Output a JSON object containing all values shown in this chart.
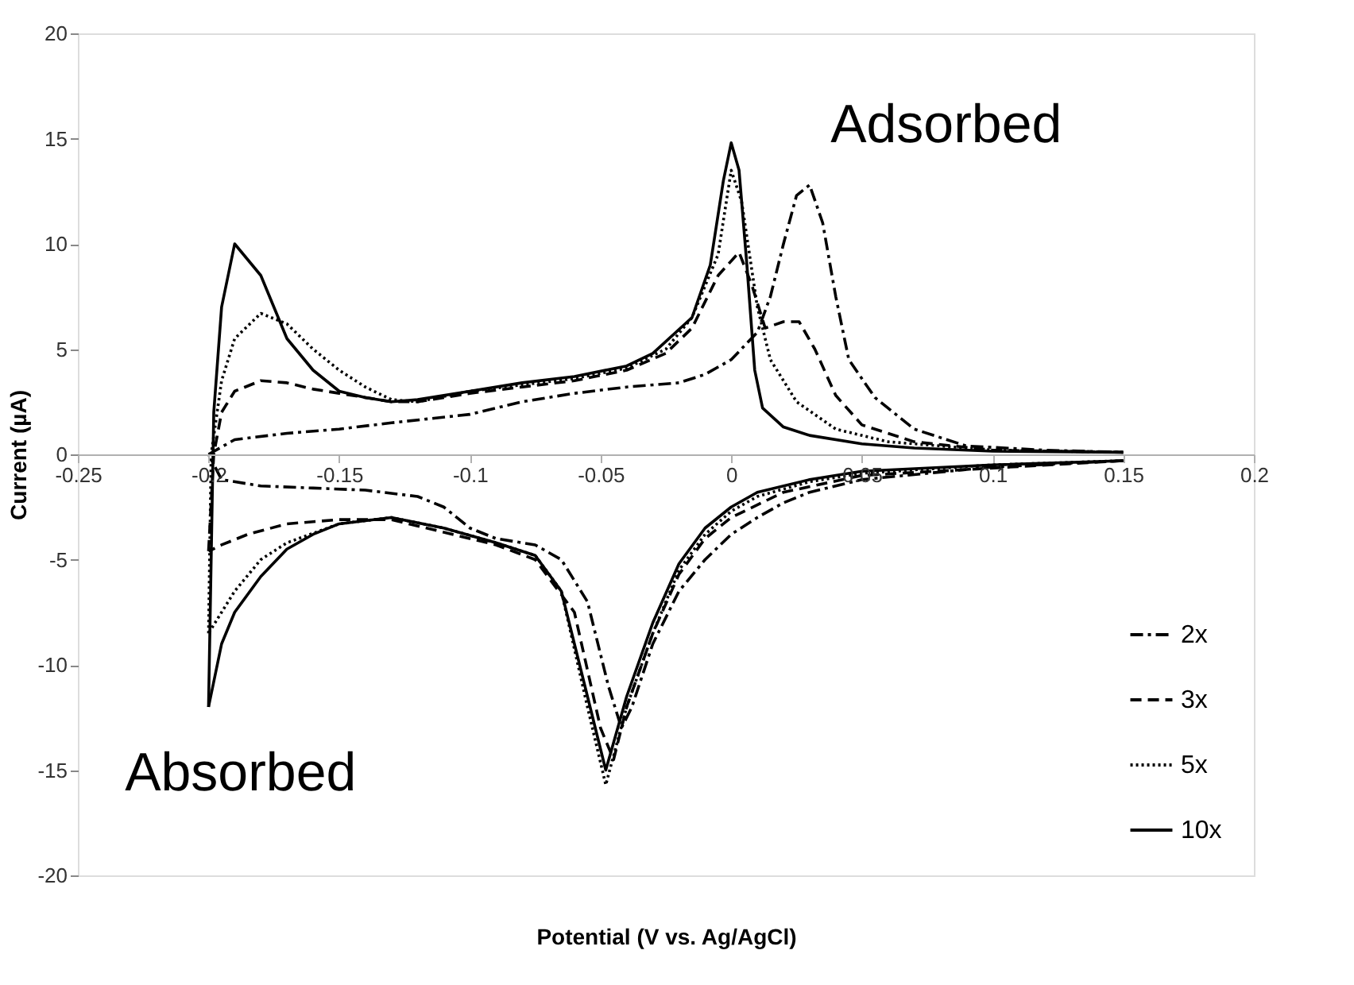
{
  "chart_data": {
    "type": "line",
    "xlabel": "Potential (V vs. Ag/AgCl)",
    "ylabel": "Current (µA)",
    "xlim": [
      -0.25,
      0.2
    ],
    "xticks": [
      -0.25,
      -0.2,
      -0.15,
      -0.1,
      -0.05,
      0,
      0.05,
      0.1,
      0.15,
      0.2
    ],
    "ylim": [
      -20,
      20
    ],
    "yticks": [
      -20,
      -15,
      -10,
      -5,
      0,
      5,
      10,
      15,
      20
    ],
    "grid": false,
    "legend": "bottom right",
    "marker": "none",
    "annotations": [
      "Adsorbed",
      "Absorbed"
    ],
    "series": [
      {
        "name": "2x",
        "color": "#000000",
        "line_style": "dashdot",
        "x": [
          -0.2,
          -0.19,
          -0.17,
          -0.15,
          -0.13,
          -0.1,
          -0.08,
          -0.06,
          -0.04,
          -0.02,
          -0.01,
          0,
          0.01,
          0.015,
          0.02,
          0.025,
          0.03,
          0.035,
          0.04,
          0.045,
          0.055,
          0.07,
          0.09,
          0.12,
          0.15
        ],
        "values": [
          0,
          0.7,
          1,
          1.2,
          1.5,
          1.9,
          2.5,
          2.9,
          3.2,
          3.4,
          3.8,
          4.5,
          5.8,
          7.5,
          10,
          12.3,
          12.8,
          11,
          7.5,
          4.5,
          2.7,
          1.2,
          0.4,
          0.2,
          0.1
        ]
      },
      {
        "color": "#000000",
        "line_style": "dashdot",
        "x": [
          0.15,
          0.1,
          0.05,
          0.03,
          0.02,
          0.01,
          0,
          -0.01,
          -0.02,
          -0.03,
          -0.038,
          -0.042,
          -0.047,
          -0.055,
          -0.065,
          -0.075,
          -0.09,
          -0.1,
          -0.11,
          -0.12,
          -0.14,
          -0.16,
          -0.18,
          -0.195,
          -0.2
        ],
        "values": [
          -0.3,
          -0.6,
          -1.2,
          -1.8,
          -2.3,
          -3,
          -3.8,
          -5,
          -6.5,
          -9,
          -12,
          -13,
          -11,
          -7,
          -5,
          -4.3,
          -4,
          -3.5,
          -2.5,
          -2,
          -1.7,
          -1.6,
          -1.5,
          -1.2,
          0
        ]
      },
      {
        "name": "3x",
        "color": "#000000",
        "line_style": "dashed",
        "x": [
          -0.2,
          -0.198,
          -0.195,
          -0.19,
          -0.18,
          -0.17,
          -0.16,
          -0.15,
          -0.13,
          -0.12,
          -0.1,
          -0.08,
          -0.06,
          -0.04,
          -0.025,
          -0.015,
          -0.005,
          0.003,
          0.008,
          0.013,
          0.02,
          0.026,
          0.032,
          0.04,
          0.05,
          0.07,
          0.1,
          0.15
        ],
        "values": [
          -4.6,
          0,
          2,
          3,
          3.5,
          3.4,
          3.1,
          2.9,
          2.5,
          2.5,
          2.9,
          3.2,
          3.5,
          4,
          4.8,
          6,
          8.5,
          9.6,
          8,
          6,
          6.3,
          6.3,
          5,
          2.8,
          1.4,
          0.6,
          0.2,
          0.1
        ]
      },
      {
        "color": "#000000",
        "line_style": "dashed",
        "x": [
          0.15,
          0.05,
          0.02,
          0,
          -0.01,
          -0.02,
          -0.03,
          -0.04,
          -0.045,
          -0.05,
          -0.06,
          -0.075,
          -0.09,
          -0.11,
          -0.13,
          -0.15,
          -0.17,
          -0.185,
          -0.195,
          -0.2
        ],
        "values": [
          -0.3,
          -1,
          -1.8,
          -3,
          -4,
          -5.7,
          -8.5,
          -12,
          -14.5,
          -13,
          -7.5,
          -5,
          -4.3,
          -3.7,
          -3.1,
          -3.1,
          -3.3,
          -3.8,
          -4.3,
          -4.6
        ]
      },
      {
        "name": "5x",
        "color": "#000000",
        "line_style": "dotted",
        "x": [
          -0.2,
          -0.199,
          -0.195,
          -0.19,
          -0.18,
          -0.17,
          -0.16,
          -0.15,
          -0.14,
          -0.13,
          -0.12,
          -0.1,
          -0.08,
          -0.06,
          -0.04,
          -0.025,
          -0.015,
          -0.005,
          0,
          0.004,
          0.01,
          0.015,
          0.025,
          0.04,
          0.06,
          0.1,
          0.15
        ],
        "values": [
          -8.5,
          0,
          3.5,
          5.5,
          6.7,
          6.2,
          5,
          4,
          3.2,
          2.6,
          2.5,
          3,
          3.3,
          3.6,
          4.1,
          5,
          6.5,
          9.5,
          13.5,
          12,
          7,
          4.5,
          2.5,
          1.2,
          0.6,
          0.2,
          0.1
        ]
      },
      {
        "color": "#000000",
        "line_style": "dotted",
        "x": [
          0.15,
          0.1,
          0.05,
          0.03,
          0.01,
          0,
          -0.01,
          -0.02,
          -0.03,
          -0.04,
          -0.048,
          -0.055,
          -0.065,
          -0.075,
          -0.09,
          -0.11,
          -0.13,
          -0.15,
          -0.17,
          -0.18,
          -0.19,
          -0.195,
          -0.2
        ],
        "values": [
          -0.3,
          -0.5,
          -0.9,
          -1.3,
          -2,
          -2.7,
          -3.8,
          -5.5,
          -8.5,
          -12,
          -15.7,
          -12,
          -6.5,
          -4.8,
          -4.2,
          -3.5,
          -3,
          -3.3,
          -4.2,
          -5,
          -6.5,
          -7.5,
          -8.5
        ]
      },
      {
        "name": "10x",
        "color": "#000000",
        "line_style": "solid",
        "x": [
          -0.2,
          -0.198,
          -0.195,
          -0.19,
          -0.18,
          -0.17,
          -0.16,
          -0.15,
          -0.14,
          -0.13,
          -0.12,
          -0.1,
          -0.08,
          -0.06,
          -0.04,
          -0.03,
          -0.015,
          -0.008,
          -0.003,
          0,
          0.003,
          0.006,
          0.009,
          0.012,
          0.02,
          0.03,
          0.05,
          0.07,
          0.1,
          0.15
        ],
        "values": [
          -12,
          2,
          7,
          10,
          8.5,
          5.5,
          4,
          3,
          2.7,
          2.5,
          2.6,
          3,
          3.4,
          3.7,
          4.2,
          4.8,
          6.5,
          9,
          13,
          14.8,
          13.5,
          9,
          4,
          2.2,
          1.3,
          0.9,
          0.5,
          0.3,
          0.15,
          0.1
        ]
      },
      {
        "color": "#000000",
        "line_style": "solid",
        "x": [
          0.15,
          0.1,
          0.05,
          0.03,
          0.01,
          0,
          -0.01,
          -0.02,
          -0.03,
          -0.04,
          -0.048,
          -0.055,
          -0.065,
          -0.075,
          -0.09,
          -0.11,
          -0.13,
          -0.15,
          -0.16,
          -0.17,
          -0.18,
          -0.19,
          -0.195,
          -0.2
        ],
        "values": [
          -0.3,
          -0.5,
          -0.8,
          -1.2,
          -1.8,
          -2.5,
          -3.5,
          -5.2,
          -8,
          -11.5,
          -15,
          -11.5,
          -6.5,
          -4.8,
          -4.2,
          -3.5,
          -3,
          -3.3,
          -3.8,
          -4.5,
          -5.8,
          -7.5,
          -9,
          -12
        ]
      }
    ]
  }
}
